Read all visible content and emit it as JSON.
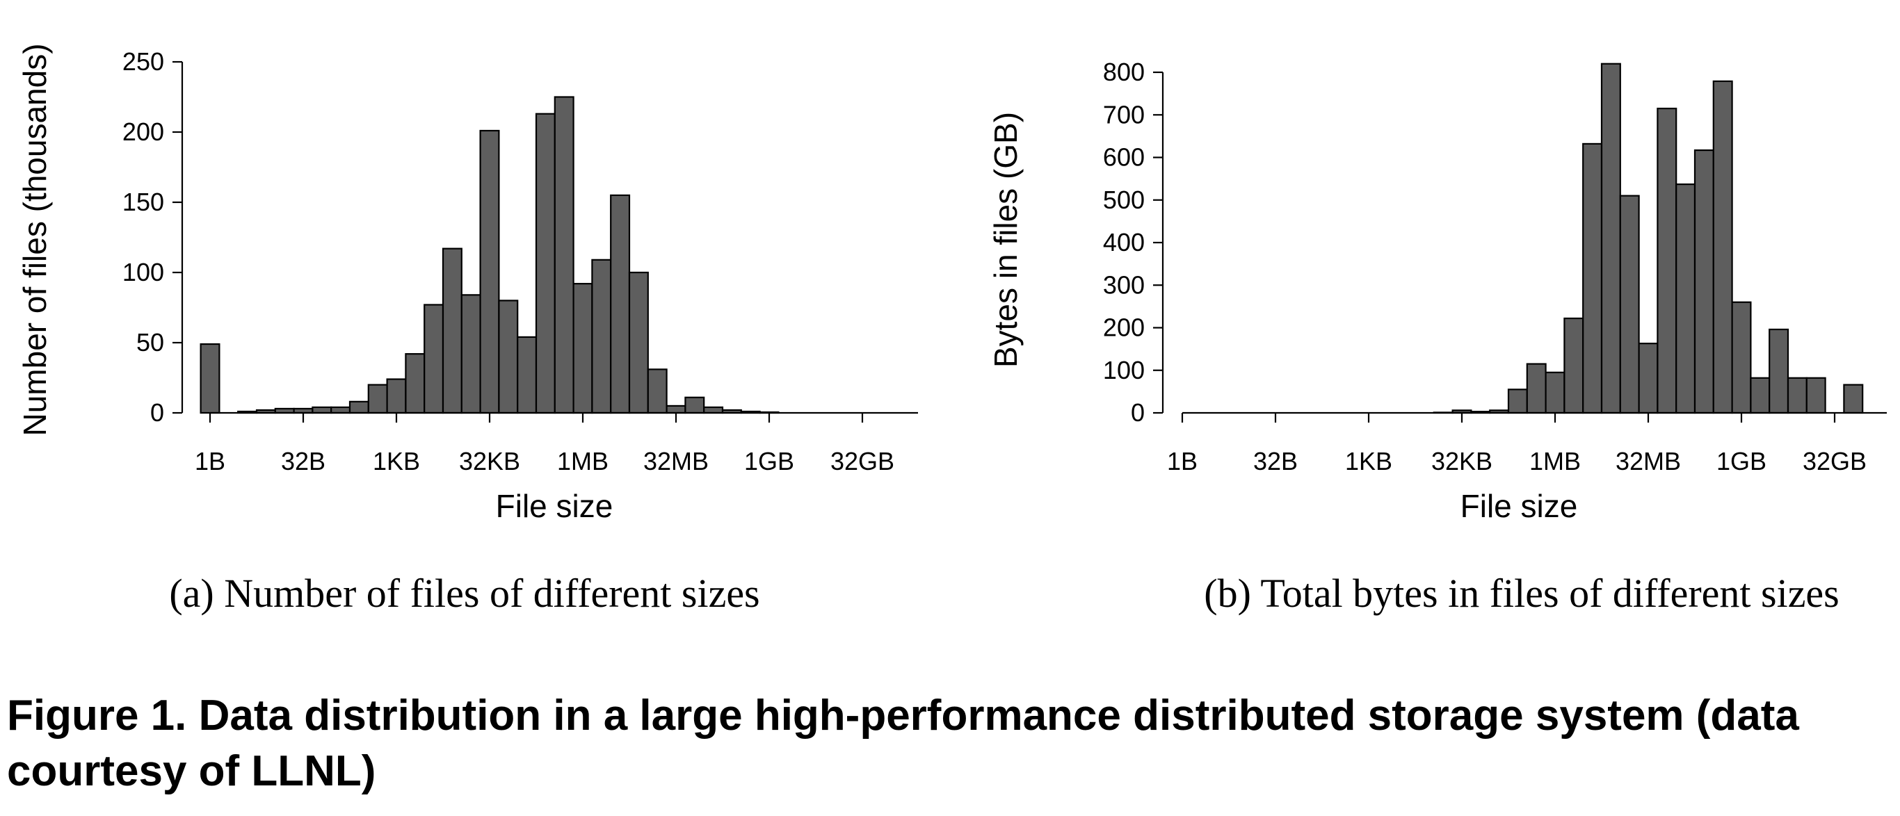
{
  "chart_data": [
    {
      "type": "bar",
      "caption": "(a) Number of files of different sizes",
      "xlabel": "File size",
      "ylabel": "Number of files (thousands)",
      "ylim": [
        0,
        250
      ],
      "y_ticks": [
        0,
        50,
        100,
        150,
        200,
        250
      ],
      "x_ticks": [
        {
          "label": "1B",
          "log2": 0
        },
        {
          "label": "32B",
          "log2": 5
        },
        {
          "label": "1KB",
          "log2": 10
        },
        {
          "label": "32KB",
          "log2": 15
        },
        {
          "label": "1MB",
          "log2": 20
        },
        {
          "label": "32MB",
          "log2": 25
        },
        {
          "label": "1GB",
          "log2": 30
        },
        {
          "label": "32GB",
          "log2": 35
        }
      ],
      "xlim_log2": [
        -1,
        38
      ],
      "bin_log2_start": -0.5,
      "bin_width_log2": 1,
      "values": [
        49,
        0,
        1,
        2,
        3,
        3,
        4,
        4,
        8,
        20,
        24,
        42,
        77,
        117,
        84,
        201,
        80,
        54,
        213,
        225,
        92,
        109,
        155,
        100,
        31,
        5,
        11,
        4,
        2,
        1,
        0.5,
        0,
        0,
        0,
        0,
        0,
        0,
        0
      ],
      "bar_color": "#5e5e5e"
    },
    {
      "type": "bar",
      "caption": "(b) Total bytes in files of different sizes",
      "xlabel": "File size",
      "ylabel": "Bytes in files (GB)",
      "ylim": [
        0,
        800
      ],
      "y_ticks": [
        0,
        100,
        200,
        300,
        400,
        500,
        600,
        700,
        800
      ],
      "x_ticks": [
        {
          "label": "1B",
          "log2": 0
        },
        {
          "label": "32B",
          "log2": 5
        },
        {
          "label": "1KB",
          "log2": 10
        },
        {
          "label": "32KB",
          "log2": 15
        },
        {
          "label": "1MB",
          "log2": 20
        },
        {
          "label": "32MB",
          "log2": 25
        },
        {
          "label": "1GB",
          "log2": 30
        },
        {
          "label": "32GB",
          "log2": 35
        }
      ],
      "xlim_log2": [
        -1,
        37.5
      ],
      "bin_log2_start": -0.5,
      "bin_width_log2": 1,
      "values": [
        0,
        0,
        0,
        0,
        0,
        0,
        0,
        0,
        0,
        0,
        0,
        0,
        0,
        0,
        1,
        6,
        3,
        6,
        55,
        115,
        95,
        222,
        632,
        820,
        510,
        163,
        715,
        537,
        617,
        779,
        260,
        82,
        196,
        82,
        82,
        0,
        66
      ],
      "bar_color": "#5e5e5e"
    }
  ],
  "figure_caption": "Figure 1. Data distribution in a large high-performance distributed storage system (data courtesy of LLNL)"
}
